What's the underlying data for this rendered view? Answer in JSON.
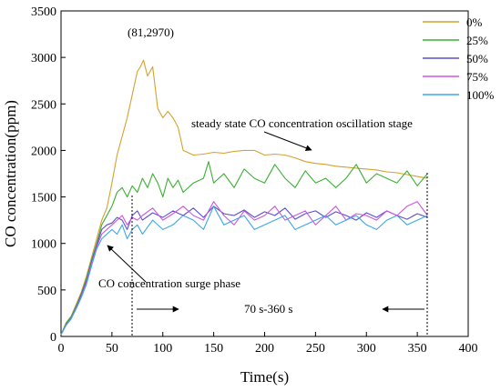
{
  "chart_data": {
    "type": "line",
    "xlabel": "Time(s)",
    "ylabel": "CO concentration(ppm)",
    "xlim": [
      0,
      400
    ],
    "ylim": [
      0,
      3500
    ],
    "xticks": [
      0,
      50,
      100,
      150,
      200,
      250,
      300,
      350,
      400
    ],
    "yticks": [
      0,
      500,
      1000,
      1500,
      2000,
      2500,
      3000,
      3500
    ],
    "grid": false,
    "legend_position": "top-right",
    "series": [
      {
        "name": "0%",
        "color": "#d4a22e",
        "x": [
          0,
          5,
          10,
          15,
          20,
          25,
          30,
          35,
          40,
          45,
          50,
          55,
          60,
          65,
          70,
          75,
          78,
          81,
          85,
          90,
          95,
          100,
          105,
          110,
          115,
          120,
          130,
          140,
          150,
          160,
          170,
          180,
          190,
          200,
          210,
          220,
          230,
          240,
          250,
          260,
          270,
          280,
          290,
          300,
          310,
          320,
          330,
          340,
          350,
          360
        ],
        "y": [
          20,
          150,
          220,
          350,
          480,
          650,
          850,
          1050,
          1250,
          1380,
          1650,
          1950,
          2150,
          2350,
          2600,
          2850,
          2900,
          2970,
          2800,
          2900,
          2450,
          2350,
          2420,
          2350,
          2250,
          2000,
          1950,
          1960,
          1980,
          1970,
          1990,
          2000,
          2000,
          1950,
          1960,
          1950,
          1920,
          1880,
          1860,
          1850,
          1830,
          1820,
          1810,
          1800,
          1790,
          1770,
          1760,
          1740,
          1720,
          1700
        ]
      },
      {
        "name": "25%",
        "color": "#3cb034",
        "x": [
          0,
          5,
          10,
          15,
          20,
          25,
          30,
          35,
          40,
          45,
          50,
          55,
          60,
          65,
          70,
          75,
          80,
          85,
          90,
          95,
          100,
          105,
          110,
          115,
          120,
          130,
          140,
          145,
          150,
          160,
          170,
          180,
          190,
          200,
          210,
          220,
          230,
          240,
          250,
          260,
          270,
          280,
          290,
          300,
          310,
          320,
          330,
          340,
          350,
          360
        ],
        "y": [
          20,
          140,
          210,
          330,
          460,
          620,
          820,
          1000,
          1200,
          1300,
          1400,
          1550,
          1600,
          1500,
          1620,
          1550,
          1700,
          1600,
          1750,
          1650,
          1500,
          1700,
          1600,
          1680,
          1550,
          1650,
          1700,
          1880,
          1650,
          1750,
          1600,
          1800,
          1700,
          1650,
          1850,
          1700,
          1600,
          1780,
          1650,
          1700,
          1600,
          1700,
          1850,
          1650,
          1750,
          1700,
          1650,
          1780,
          1620,
          1750
        ]
      },
      {
        "name": "50%",
        "color": "#5a4fcf",
        "x": [
          0,
          5,
          10,
          15,
          20,
          25,
          30,
          35,
          40,
          45,
          50,
          55,
          60,
          65,
          70,
          75,
          80,
          90,
          100,
          110,
          120,
          130,
          140,
          150,
          160,
          170,
          180,
          190,
          200,
          210,
          220,
          230,
          240,
          250,
          260,
          270,
          280,
          290,
          300,
          310,
          320,
          330,
          340,
          350,
          360
        ],
        "y": [
          20,
          130,
          200,
          320,
          450,
          600,
          800,
          980,
          1150,
          1200,
          1220,
          1280,
          1250,
          1150,
          1300,
          1350,
          1250,
          1330,
          1280,
          1350,
          1300,
          1380,
          1280,
          1400,
          1320,
          1300,
          1360,
          1280,
          1340,
          1300,
          1380,
          1260,
          1320,
          1350,
          1280,
          1340,
          1300,
          1250,
          1330,
          1280,
          1350,
          1300,
          1260,
          1320,
          1280
        ]
      },
      {
        "name": "75%",
        "color": "#cc55e0",
        "x": [
          0,
          5,
          10,
          15,
          20,
          25,
          30,
          35,
          40,
          45,
          50,
          55,
          60,
          65,
          70,
          75,
          80,
          90,
          100,
          110,
          120,
          130,
          140,
          150,
          160,
          170,
          180,
          190,
          200,
          210,
          220,
          230,
          240,
          250,
          260,
          270,
          280,
          290,
          300,
          310,
          320,
          330,
          340,
          350,
          360
        ],
        "y": [
          20,
          120,
          190,
          310,
          430,
          580,
          780,
          960,
          1100,
          1150,
          1200,
          1250,
          1300,
          1200,
          1280,
          1250,
          1300,
          1380,
          1250,
          1320,
          1400,
          1300,
          1250,
          1450,
          1300,
          1200,
          1350,
          1250,
          1300,
          1400,
          1250,
          1300,
          1350,
          1200,
          1300,
          1400,
          1250,
          1320,
          1300,
          1250,
          1350,
          1300,
          1400,
          1450,
          1300
        ]
      },
      {
        "name": "100%",
        "color": "#3aa8e8",
        "x": [
          0,
          5,
          10,
          15,
          20,
          25,
          30,
          35,
          40,
          45,
          50,
          55,
          60,
          65,
          70,
          75,
          80,
          90,
          100,
          110,
          120,
          130,
          140,
          150,
          160,
          170,
          180,
          190,
          200,
          210,
          220,
          230,
          240,
          250,
          260,
          270,
          280,
          290,
          300,
          310,
          320,
          330,
          340,
          350,
          360
        ],
        "y": [
          20,
          125,
          195,
          300,
          420,
          560,
          760,
          940,
          1050,
          1100,
          1150,
          1100,
          1200,
          1050,
          1150,
          1200,
          1100,
          1250,
          1150,
          1200,
          1300,
          1250,
          1150,
          1400,
          1200,
          1250,
          1300,
          1150,
          1200,
          1250,
          1300,
          1150,
          1200,
          1250,
          1300,
          1200,
          1250,
          1300,
          1200,
          1150,
          1250,
          1300,
          1200,
          1250,
          1300
        ]
      }
    ],
    "annotations": {
      "peak_label": "(81,2970)",
      "steady_label": "steady state CO concentration oscillation stage",
      "surge_label": "CO concentration surge phase",
      "range_label": "70 s-360 s"
    }
  }
}
